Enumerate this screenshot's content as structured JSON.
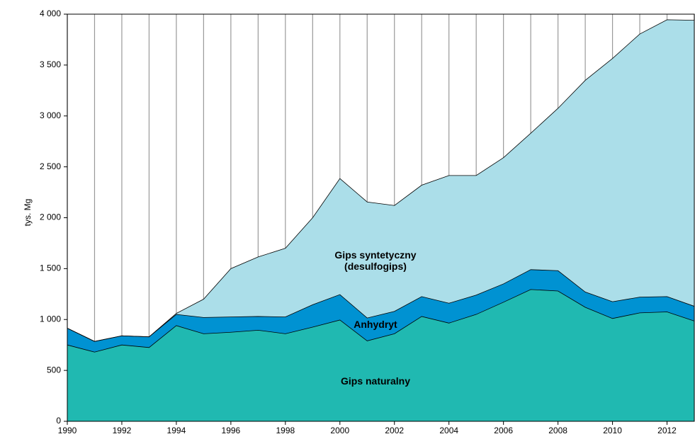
{
  "chart_data": {
    "type": "stacked-area",
    "y_label": "tys. Mg",
    "x": [
      1990,
      1991,
      1992,
      1993,
      1994,
      1995,
      1996,
      1997,
      1998,
      1999,
      2000,
      2001,
      2002,
      2003,
      2004,
      2005,
      2006,
      2007,
      2008,
      2009,
      2010,
      2011,
      2012,
      2013
    ],
    "series": [
      {
        "name": "Gips naturalny",
        "color": "#20b9b1",
        "values": [
          750,
          680,
          750,
          725,
          940,
          860,
          875,
          895,
          860,
          925,
          995,
          790,
          860,
          1030,
          965,
          1050,
          1170,
          1295,
          1280,
          1120,
          1010,
          1065,
          1075,
          985
        ]
      },
      {
        "name": "Anhydryt",
        "color": "#0092d2",
        "values": [
          165,
          105,
          90,
          105,
          110,
          160,
          150,
          135,
          165,
          220,
          250,
          225,
          220,
          195,
          195,
          190,
          180,
          195,
          200,
          150,
          165,
          155,
          150,
          145
        ]
      },
      {
        "name": "Gips syntetyczny (desulfogips)",
        "color": "#abdee9",
        "values": [
          0,
          0,
          0,
          0,
          10,
          180,
          475,
          585,
          675,
          855,
          1140,
          1140,
          1040,
          1095,
          1255,
          1175,
          1240,
          1340,
          1595,
          2080,
          2390,
          2585,
          2720,
          2810
        ]
      }
    ],
    "xlim": [
      1990,
      2013
    ],
    "xticks": [
      1990,
      1992,
      1994,
      1996,
      1998,
      2000,
      2002,
      2004,
      2006,
      2008,
      2010,
      2012
    ],
    "ylim": [
      0,
      4000
    ],
    "yticks": [
      0,
      500,
      {
        "value": 1000,
        "label": "1 000"
      },
      {
        "value": 1500,
        "label": "1 500"
      },
      {
        "value": 2000,
        "label": "2 000"
      },
      {
        "value": 2500,
        "label": "2 500"
      },
      {
        "value": 3000,
        "label": "3 000"
      },
      {
        "value": 3500,
        "label": "3 500"
      },
      {
        "value": 4000,
        "label": "4 000"
      }
    ],
    "grid": true
  }
}
